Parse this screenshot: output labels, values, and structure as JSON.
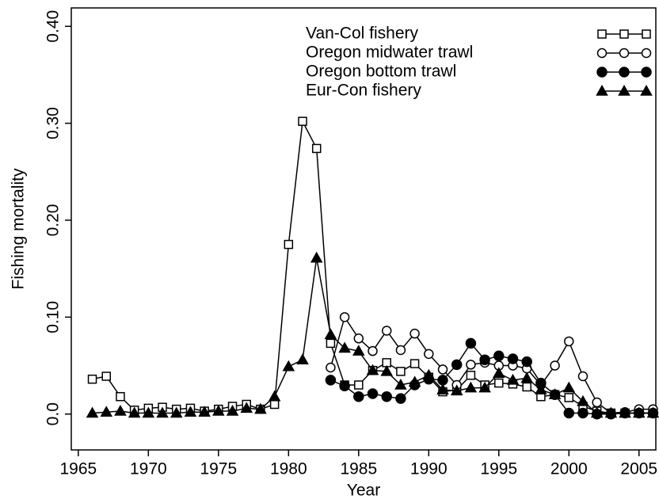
{
  "chart_data": {
    "type": "line",
    "xlabel": "Year",
    "ylabel": "Fishing mortality",
    "xlim": [
      1964.5,
      2006.2
    ],
    "ylim": [
      -0.037,
      0.419
    ],
    "xticks": [
      1965,
      1970,
      1975,
      1980,
      1985,
      1990,
      1995,
      2000,
      2005
    ],
    "yticks": [
      {
        "value": 0,
        "label": "0.0"
      },
      {
        "value": 0.1,
        "label": "0.10"
      },
      {
        "value": 0.2,
        "label": "0.20"
      },
      {
        "value": 0.3,
        "label": "0.30"
      },
      {
        "value": 0.4,
        "label": "0.40"
      }
    ],
    "legend": "top-right",
    "x": [
      1966,
      1967,
      1968,
      1969,
      1970,
      1971,
      1972,
      1973,
      1974,
      1975,
      1976,
      1977,
      1978,
      1979,
      1980,
      1981,
      1982,
      1983,
      1984,
      1985,
      1986,
      1987,
      1988,
      1989,
      1990,
      1991,
      1992,
      1993,
      1994,
      1995,
      1996,
      1997,
      1998,
      1999,
      2000,
      2001,
      2002,
      2003,
      2004,
      2005,
      2006
    ],
    "series": [
      {
        "name": "Van-Col fishery",
        "color": "#000000",
        "marker": "square-open",
        "values": [
          0.036,
          0.039,
          0.018,
          0.004,
          0.006,
          0.007,
          0.005,
          0.006,
          0.003,
          0.005,
          0.008,
          0.01,
          0.005,
          0.01,
          0.175,
          0.302,
          0.274,
          0.073,
          0.03,
          0.03,
          0.045,
          0.053,
          0.044,
          0.052,
          0.038,
          0.023,
          0.025,
          0.04,
          0.03,
          0.032,
          0.031,
          0.028,
          0.018,
          0.02,
          0.017,
          0.008,
          0.003,
          0.001,
          0.001,
          0.001,
          0.001
        ]
      },
      {
        "name": "Oregon midwater trawl",
        "color": "#000000",
        "marker": "circle-open",
        "values": [
          null,
          null,
          null,
          null,
          null,
          null,
          null,
          null,
          null,
          null,
          null,
          null,
          null,
          null,
          null,
          null,
          null,
          0.048,
          0.1,
          0.078,
          0.065,
          0.086,
          0.066,
          0.083,
          0.062,
          0.046,
          0.03,
          0.051,
          0.053,
          0.05,
          0.05,
          0.047,
          0.03,
          0.05,
          0.075,
          0.039,
          0.012,
          0.001,
          0.002,
          0.005,
          0.005
        ]
      },
      {
        "name": "Oregon bottom trawl",
        "color": "#000000",
        "marker": "circle",
        "values": [
          null,
          null,
          null,
          null,
          null,
          null,
          null,
          null,
          null,
          null,
          null,
          null,
          null,
          null,
          null,
          null,
          null,
          0.035,
          0.029,
          0.018,
          0.021,
          0.018,
          0.016,
          0.03,
          0.036,
          0.035,
          0.051,
          0.073,
          0.056,
          0.06,
          0.057,
          0.054,
          0.032,
          0.02,
          0.001,
          0.001,
          0.0,
          0.0,
          0.001,
          0.001,
          0.001
        ]
      },
      {
        "name": "Eur-Con fishery",
        "color": "#000000",
        "marker": "triangle",
        "values": [
          0.001,
          0.002,
          0.003,
          0.001,
          0.001,
          0.001,
          0.001,
          0.002,
          0.002,
          0.003,
          0.003,
          0.006,
          0.005,
          0.018,
          0.049,
          0.056,
          0.161,
          0.082,
          0.068,
          0.065,
          0.045,
          0.044,
          0.03,
          0.033,
          0.04,
          0.025,
          0.024,
          0.027,
          0.027,
          0.042,
          0.035,
          0.037,
          0.025,
          0.02,
          0.027,
          0.013,
          0.001,
          0.001,
          0.001,
          0.001,
          0.001
        ]
      }
    ]
  }
}
